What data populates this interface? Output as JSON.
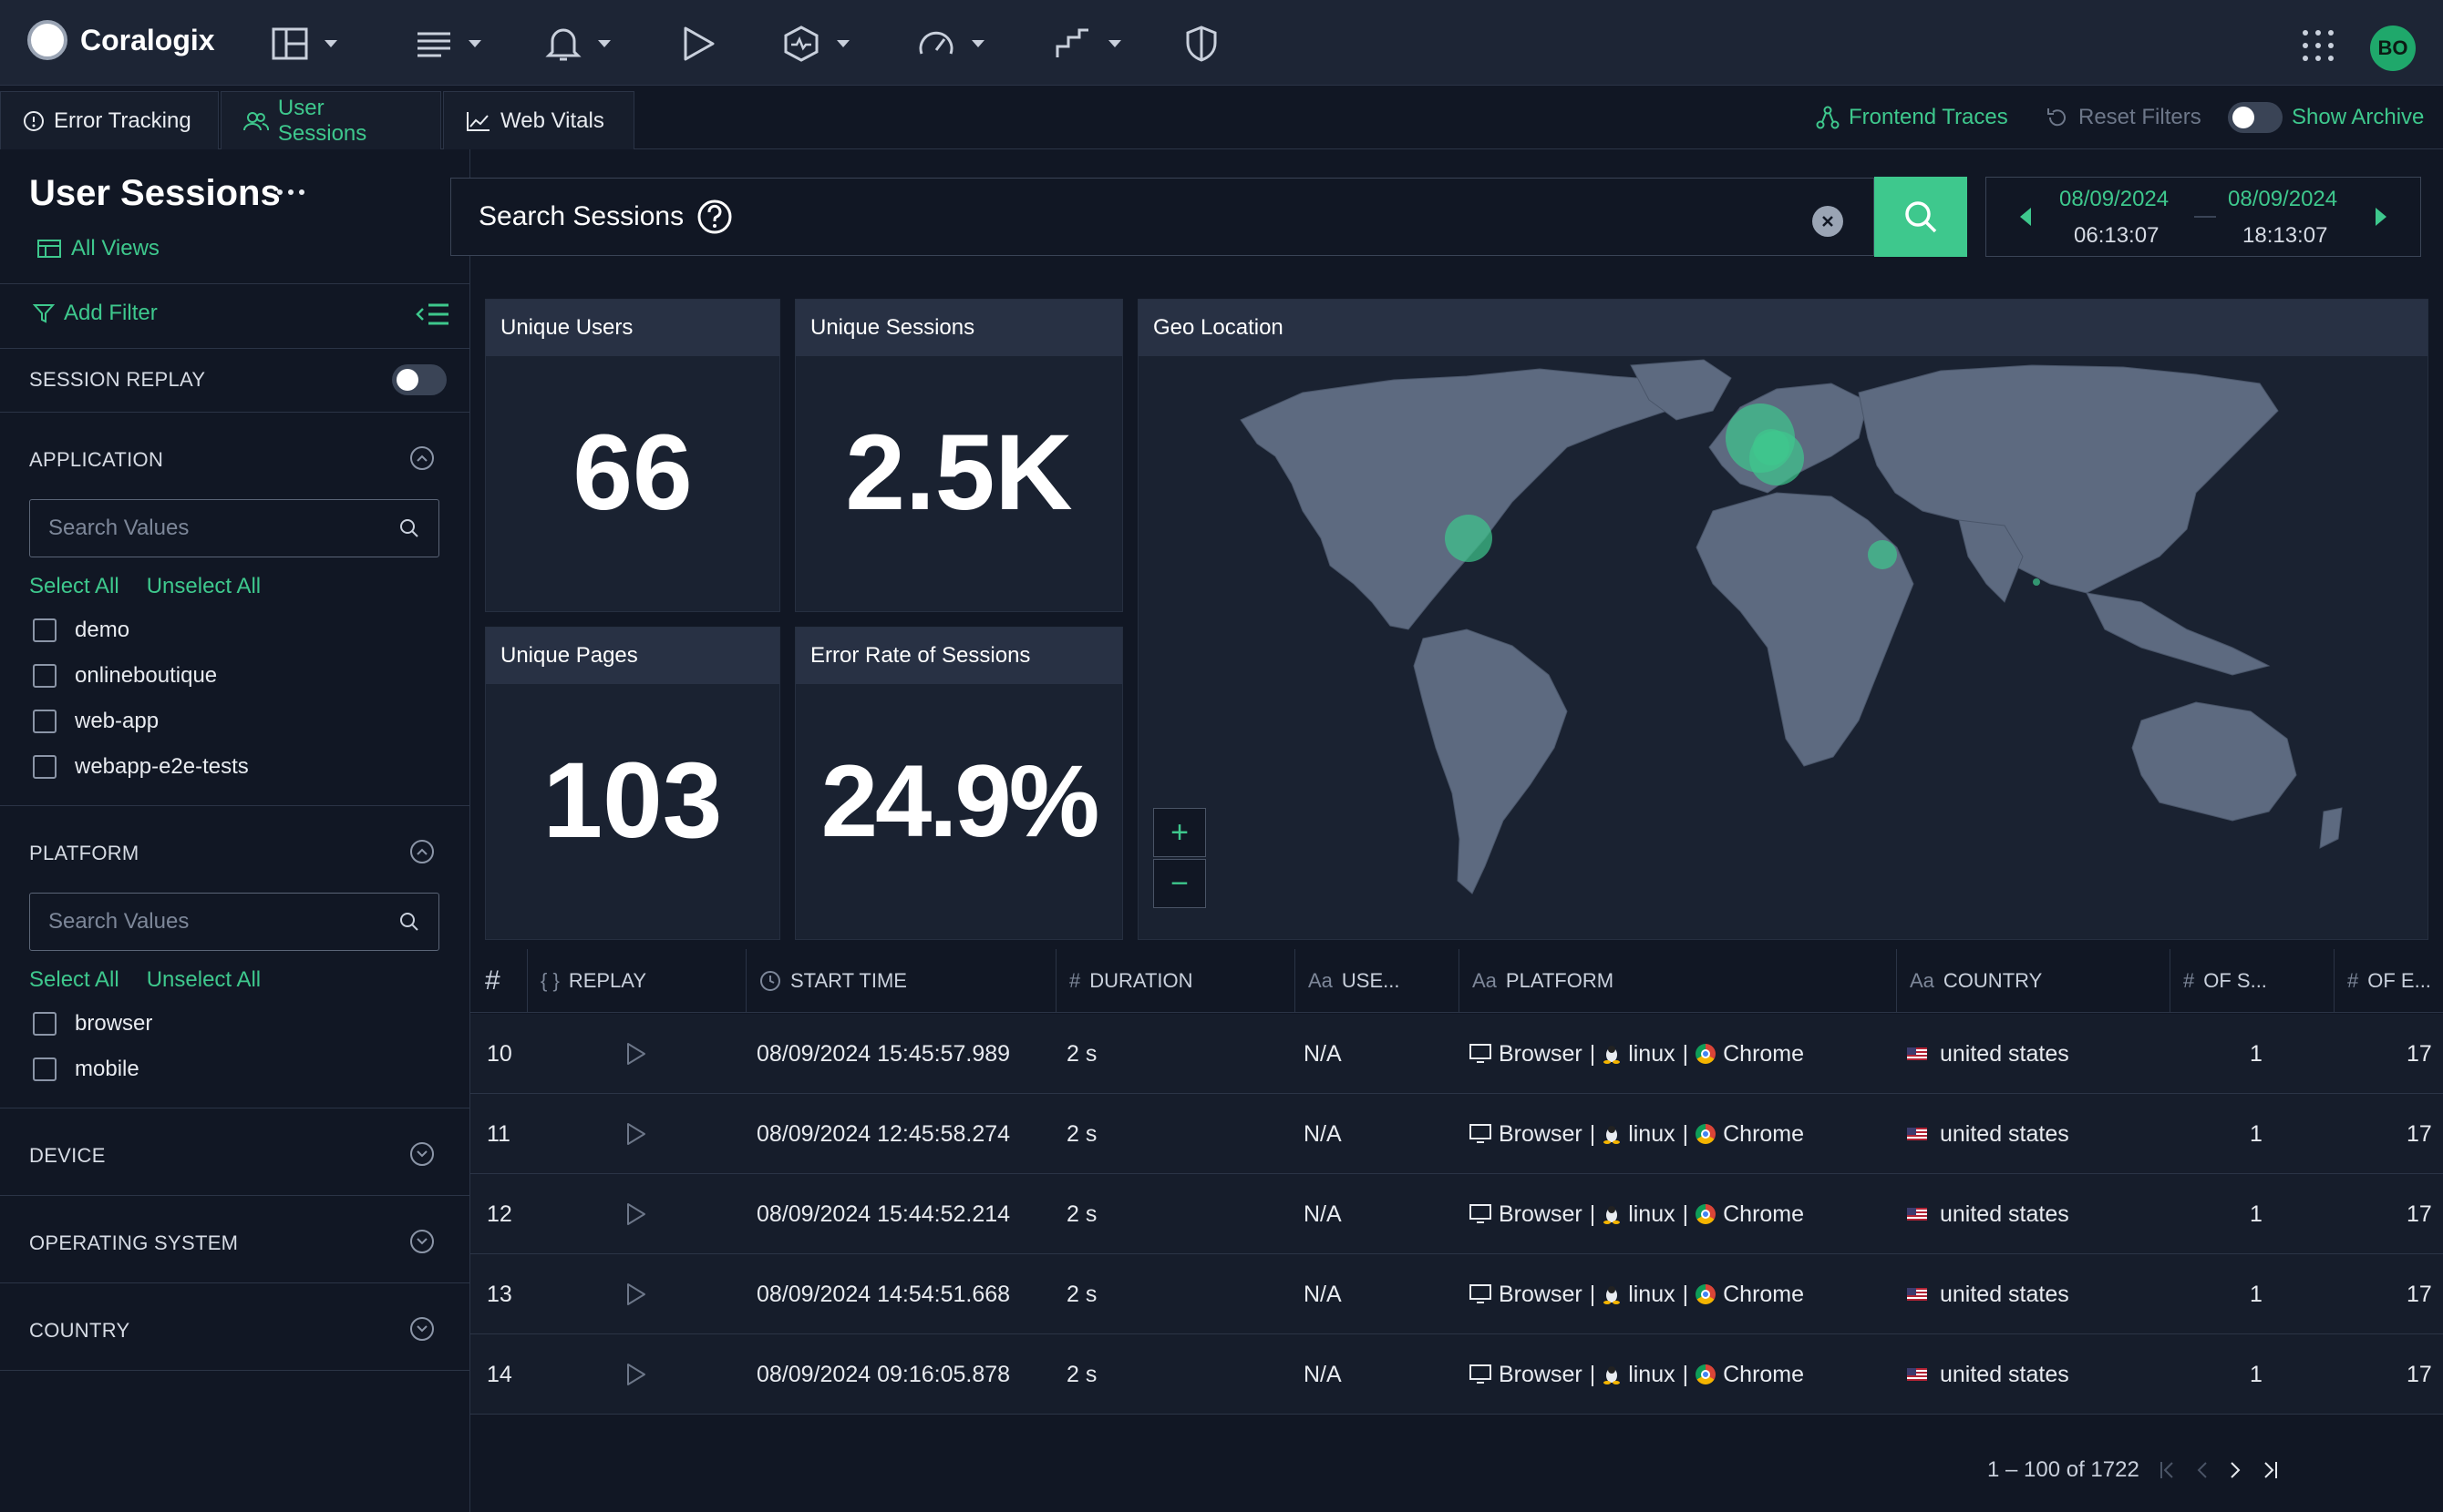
{
  "app": {
    "name": "Coralogix",
    "user_initials": "BO"
  },
  "topnav": {
    "icons": [
      "dashboards-icon",
      "logs-icon",
      "alerts-icon",
      "play-icon",
      "incidents-icon",
      "gauge-icon",
      "flow-icon",
      "shield-icon"
    ]
  },
  "tabs": [
    {
      "label": "Error Tracking",
      "icon": "info-icon"
    },
    {
      "label": "User Sessions",
      "icon": "users-icon",
      "active": true
    },
    {
      "label": "Web Vitals",
      "icon": "chart-line-icon"
    }
  ],
  "tabbar_actions": {
    "frontend_traces": "Frontend Traces",
    "reset_filters": "Reset Filters",
    "show_archive": "Show Archive"
  },
  "page": {
    "title": "User Sessions",
    "all_views": "All Views"
  },
  "search": {
    "placeholder": "Search Sessions"
  },
  "date_range": {
    "start_date": "08/09/2024",
    "start_time": "06:13:07",
    "end_date": "08/09/2024",
    "end_time": "18:13:07"
  },
  "sidebar": {
    "add_filter": "Add Filter",
    "session_replay": "SESSION REPLAY",
    "select_all": "Select All",
    "unselect_all": "Unselect All",
    "search_placeholder": "Search Values",
    "application": {
      "title": "APPLICATION",
      "options": [
        "demo",
        "onlineboutique",
        "web-app",
        "webapp-e2e-tests"
      ]
    },
    "platform": {
      "title": "PLATFORM",
      "options": [
        "browser",
        "mobile"
      ]
    },
    "device": {
      "title": "DEVICE"
    },
    "operating_system": {
      "title": "OPERATING SYSTEM"
    },
    "country": {
      "title": "COUNTRY"
    }
  },
  "stats": {
    "unique_users": {
      "label": "Unique Users",
      "value": "66"
    },
    "unique_sessions": {
      "label": "Unique Sessions",
      "value": "2.5K"
    },
    "unique_pages": {
      "label": "Unique Pages",
      "value": "103"
    },
    "error_rate": {
      "label": "Error Rate of Sessions",
      "value": "24.9%"
    }
  },
  "geo": {
    "title": "Geo Location",
    "zoom_in": "+",
    "zoom_out": "−"
  },
  "table": {
    "headers": {
      "index": "#",
      "replay": "REPLAY",
      "start_time": "START TIME",
      "duration": "DURATION",
      "user": "USE...",
      "platform": "PLATFORM",
      "country": "COUNTRY",
      "of_s": "OF S...",
      "of_e": "OF E..."
    },
    "header_icons": {
      "index": "#",
      "replay": "{ }",
      "duration": "#",
      "user": "Aa",
      "platform": "Aa",
      "country": "Aa",
      "of_s": "#",
      "of_e": "#"
    },
    "sep": "|",
    "rows": [
      {
        "idx": "10",
        "start": "08/09/2024 15:45:57.989",
        "duration": "2 s",
        "user": "N/A",
        "platform": "Browser",
        "os": "linux",
        "browser": "Chrome",
        "country": "united states",
        "of_s": "1",
        "of_e": "17"
      },
      {
        "idx": "11",
        "start": "08/09/2024 12:45:58.274",
        "duration": "2 s",
        "user": "N/A",
        "platform": "Browser",
        "os": "linux",
        "browser": "Chrome",
        "country": "united states",
        "of_s": "1",
        "of_e": "17"
      },
      {
        "idx": "12",
        "start": "08/09/2024 15:44:52.214",
        "duration": "2 s",
        "user": "N/A",
        "platform": "Browser",
        "os": "linux",
        "browser": "Chrome",
        "country": "united states",
        "of_s": "1",
        "of_e": "17"
      },
      {
        "idx": "13",
        "start": "08/09/2024 14:54:51.668",
        "duration": "2 s",
        "user": "N/A",
        "platform": "Browser",
        "os": "linux",
        "browser": "Chrome",
        "country": "united states",
        "of_s": "1",
        "of_e": "17"
      },
      {
        "idx": "14",
        "start": "08/09/2024 09:16:05.878",
        "duration": "2 s",
        "user": "N/A",
        "platform": "Browser",
        "os": "linux",
        "browser": "Chrome",
        "country": "united states",
        "of_s": "1",
        "of_e": "17"
      }
    ],
    "pagination": "1 – 100 of 1722"
  },
  "colors": {
    "accent": "#3ec88d",
    "background": "#111724",
    "card": "#1a2231",
    "card_header": "#283144",
    "map_land": "#5d6a80"
  }
}
